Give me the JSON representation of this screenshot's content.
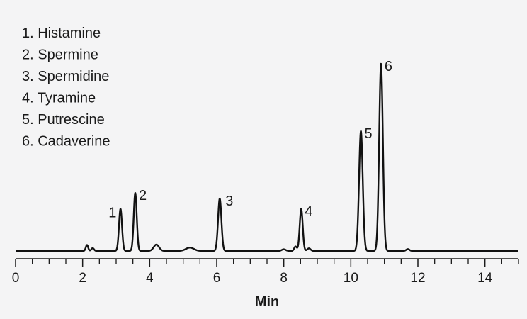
{
  "chart_data": {
    "type": "line",
    "title": "",
    "xlabel": "Min",
    "ylabel": "",
    "xlim": [
      0,
      15
    ],
    "x_ticks": [
      0,
      2,
      4,
      6,
      8,
      10,
      12,
      14
    ],
    "x_tick_labels": [
      "0",
      "2",
      "4",
      "6",
      "8",
      "10",
      "12",
      "14"
    ],
    "x_minor_step": 0.5,
    "ylim": [
      0,
      100
    ],
    "baseline": 0,
    "grid": false,
    "legend": [
      "1. Histamine",
      "2. Spermine",
      "3. Spermidine",
      "4. Tyramine",
      "5. Putrescine",
      "6. Cadaverine"
    ],
    "legend_position": "top-left",
    "line_color": "#111111",
    "peaks": [
      {
        "label": "1",
        "x": 3.13,
        "y": 22.5,
        "width": 0.045
      },
      {
        "label": "2",
        "x": 3.57,
        "y": 31.0,
        "width": 0.045
      },
      {
        "label": "3",
        "x": 6.09,
        "y": 28.0,
        "width": 0.05
      },
      {
        "label": "4",
        "x": 8.52,
        "y": 22.5,
        "width": 0.045
      },
      {
        "label": "5",
        "x": 10.3,
        "y": 64.0,
        "width": 0.055
      },
      {
        "label": "6",
        "x": 10.9,
        "y": 100.0,
        "width": 0.055
      }
    ],
    "minor_peaks": [
      {
        "x": 2.13,
        "y": 3.2,
        "width": 0.035
      },
      {
        "x": 2.3,
        "y": 1.5,
        "width": 0.04
      },
      {
        "x": 4.2,
        "y": 3.4,
        "width": 0.08
      },
      {
        "x": 5.2,
        "y": 1.8,
        "width": 0.12
      },
      {
        "x": 8.0,
        "y": 0.9,
        "width": 0.06
      },
      {
        "x": 8.35,
        "y": 2.4,
        "width": 0.04
      },
      {
        "x": 8.75,
        "y": 1.4,
        "width": 0.05
      },
      {
        "x": 11.7,
        "y": 1.0,
        "width": 0.05
      }
    ]
  }
}
